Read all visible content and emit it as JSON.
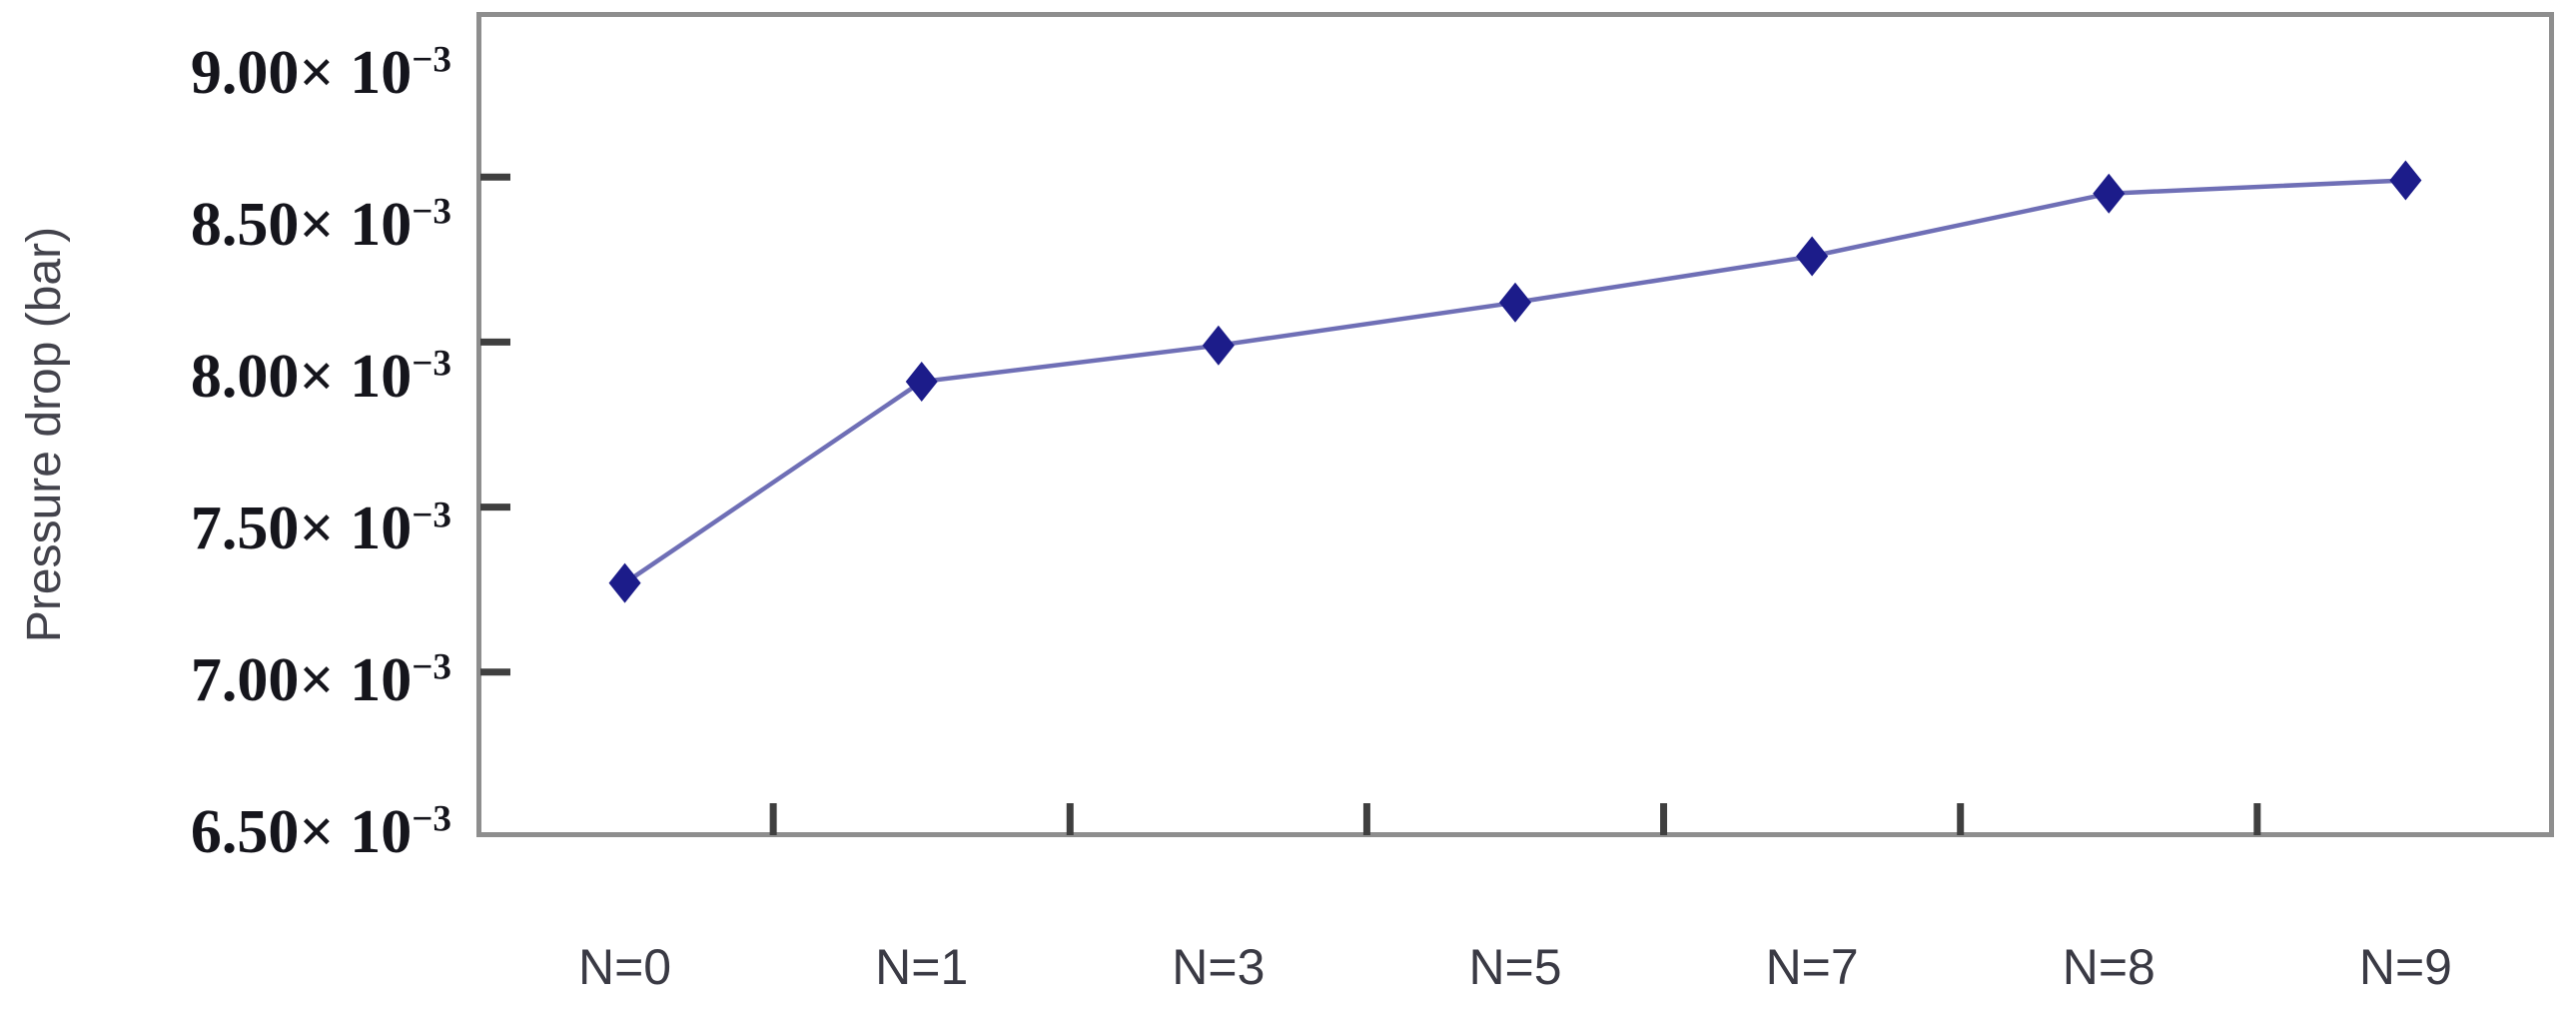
{
  "chart_data": {
    "type": "line",
    "title": "",
    "xlabel": "",
    "ylabel": "Pressure drop (bar)",
    "categories": [
      "N=0",
      "N=1",
      "N=3",
      "N=5",
      "N=7",
      "N=8",
      "N=9"
    ],
    "series": [
      {
        "name": "Pressure drop",
        "values": [
          0.00727,
          0.00788,
          0.00799,
          0.00812,
          0.00826,
          0.00845,
          0.00849
        ],
        "values_x1e3": [
          7.27,
          7.88,
          7.99,
          8.12,
          8.26,
          8.45,
          8.49
        ]
      }
    ],
    "ylim": [
      0.0065,
      0.009
    ],
    "ytick_step": 0.0005,
    "yticks": [
      {
        "mantissa": "9.00",
        "value": 0.009
      },
      {
        "mantissa": "8.50",
        "value": 0.0085
      },
      {
        "mantissa": "8.00",
        "value": 0.008
      },
      {
        "mantissa": "7.50",
        "value": 0.0075
      },
      {
        "mantissa": "7.00",
        "value": 0.007
      },
      {
        "mantissa": "6.50",
        "value": 0.0065
      }
    ],
    "ytick_multiplier": "× 10",
    "ytick_exponent": "−3",
    "grid": false,
    "legend_position": "none",
    "marker": "diamond",
    "colors": {
      "line": "#6767b2",
      "marker": "#1c1c8a",
      "frame": "#8e8e8e",
      "tick": "#3f3f3f",
      "ytick_text": "#15151c",
      "xtick_text": "#3a3a44",
      "axis_title_text": "#43434c",
      "background": "#ffffff"
    }
  }
}
